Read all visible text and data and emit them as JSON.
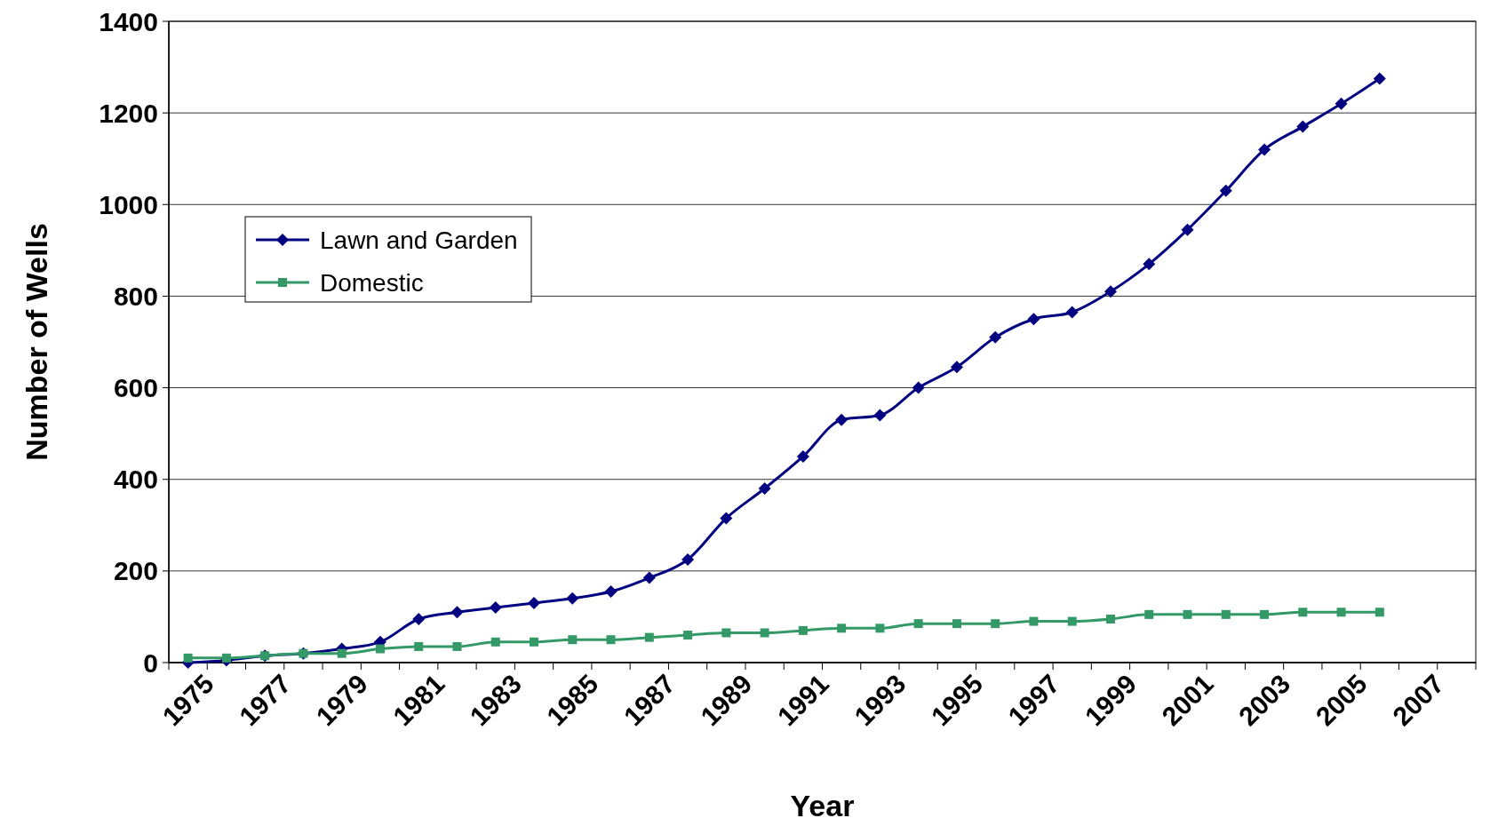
{
  "chart_data": {
    "type": "line",
    "xlabel": "Year",
    "ylabel": "Number of Wells",
    "categories": [
      "1975",
      null,
      "1977",
      null,
      "1979",
      null,
      "1981",
      null,
      "1983",
      null,
      "1985",
      null,
      "1987",
      null,
      "1989",
      null,
      "1991",
      null,
      "1993",
      null,
      "1995",
      null,
      "1997",
      null,
      "1999",
      null,
      "2001",
      null,
      "2003",
      null,
      "2005",
      null,
      "2007",
      null
    ],
    "series": [
      {
        "name": "Lawn and Garden",
        "color": "#000080",
        "marker": "diamond",
        "values": [
          0,
          5,
          15,
          20,
          30,
          45,
          95,
          110,
          120,
          130,
          140,
          155,
          185,
          225,
          315,
          380,
          450,
          530,
          540,
          600,
          645,
          710,
          750,
          765,
          810,
          870,
          945,
          1030,
          1120,
          1170,
          1220,
          1275,
          null,
          null
        ]
      },
      {
        "name": "Domestic",
        "color": "#339966",
        "marker": "square",
        "values": [
          10,
          10,
          15,
          20,
          20,
          30,
          35,
          35,
          45,
          45,
          50,
          50,
          55,
          60,
          65,
          65,
          70,
          75,
          75,
          85,
          85,
          85,
          90,
          90,
          95,
          105,
          105,
          105,
          105,
          110,
          110,
          110,
          null,
          null
        ]
      }
    ],
    "ylim": [
      0,
      1400
    ],
    "yticks": [
      0,
      200,
      400,
      600,
      800,
      1000,
      1200,
      1400
    ],
    "grid": "y",
    "legend": "top left",
    "line_style": "solid"
  }
}
